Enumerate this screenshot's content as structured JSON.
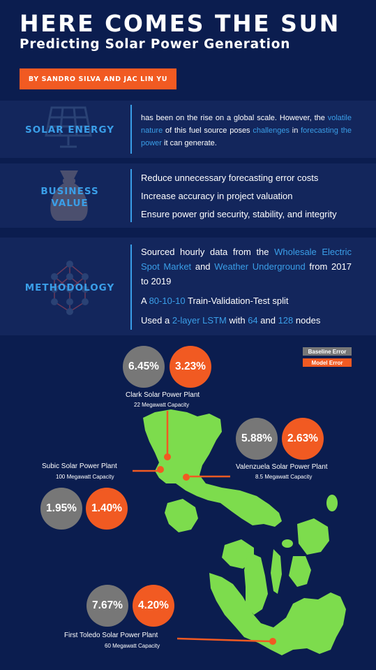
{
  "header": {
    "title": "HERE COMES THE SUN",
    "subtitle": "Predicting Solar Power Generation",
    "byline": "BY SANDRO SILVA AND JAC LIN YU"
  },
  "sections": {
    "solar": {
      "title": "SOLAR ENERGY",
      "icon": "solar-panel-icon",
      "text_parts": [
        "has been on the rise on a global scale. However, the ",
        "volatile nature",
        " of this fuel source poses ",
        "challenges",
        " in ",
        "forecasting the power",
        " it can generate."
      ]
    },
    "business": {
      "title_line1": "BUSINESS",
      "title_line2": "VALUE",
      "icon": "money-bag-icon",
      "bullets": [
        "Reduce unnecessary forecasting error costs",
        "Increase accuracy in project valuation",
        "Ensure power grid security, stability, and integrity"
      ]
    },
    "methodology": {
      "title": "METHODOLOGY",
      "icon": "neural-network-icon",
      "p1_parts": [
        "Sourced hourly data from the ",
        "Wholesale Electric Spot Market",
        " and ",
        "Weather Underground",
        " from 2017 to 2019"
      ],
      "p2_parts": [
        "A ",
        "80-10-10",
        " Train-Validation-Test split"
      ],
      "p3_parts": [
        "Used a ",
        "2-layer LSTM",
        " with ",
        "64",
        " and ",
        "128",
        " nodes"
      ]
    }
  },
  "legend": {
    "baseline": "Baseline Error",
    "model": "Model Error"
  },
  "colors": {
    "background": "#0b1d4f",
    "band": "#13265c",
    "accent_blue": "#3a9ee8",
    "accent_orange": "#f15a22",
    "baseline_grey": "#777777",
    "map_green": "#7ddc4d"
  },
  "plants": [
    {
      "name": "Clark Solar Power Plant",
      "capacity": "22 Megawatt Capacity",
      "baseline": "6.45%",
      "model": "3.23%"
    },
    {
      "name": "Valenzuela Solar Power Plant",
      "capacity": "8.5 Megawatt Capacity",
      "baseline": "5.88%",
      "model": "2.63%"
    },
    {
      "name": "Subic Solar Power Plant",
      "capacity": "100 Megawatt Capacity",
      "baseline": "1.95%",
      "model": "1.40%"
    },
    {
      "name": "First  Toledo Solar Power Plant",
      "capacity": "60 Megawatt Capacity",
      "baseline": "7.67%",
      "model": "4.20%"
    }
  ]
}
